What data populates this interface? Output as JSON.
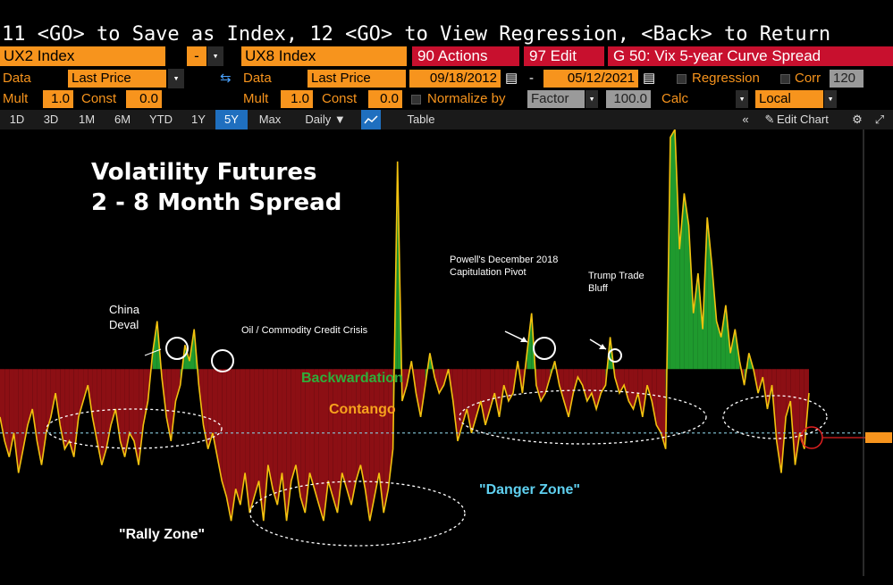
{
  "cmdline": "11 <GO> to Save as Index, 12 <GO> to View Regression, <Back> to Return",
  "security_row": {
    "security1": "UX2 Index",
    "security2": "UX8 Index",
    "actions": "90 Actions",
    "edit": "97 Edit",
    "title": "G 50: Vix 5-year Curve Spread"
  },
  "data_row": {
    "data_label1": "Data",
    "data_value1": "Last Price",
    "data_label2": "Data",
    "data_value2": "Last Price",
    "start_date": "09/18/2012",
    "end_date": "05/12/2021",
    "regression": "Regression",
    "corr": "Corr",
    "corr_value": "120"
  },
  "mult_row": {
    "mult_label": "Mult",
    "mult1": "1.0",
    "const_label": "Const",
    "const1": "0.0",
    "mult_label2": "Mult",
    "mult2": "1.0",
    "const_label2": "Const",
    "const2": "0.0",
    "normalize": "Normalize by",
    "factor": "Factor",
    "factor_value": "100.0",
    "calc": "Calc",
    "local": "Local"
  },
  "toolbar": {
    "periods": [
      "1D",
      "3D",
      "1M",
      "6M",
      "YTD",
      "1Y",
      "5Y",
      "Max"
    ],
    "active": "5Y",
    "frequency": "Daily ▼",
    "table": "Table",
    "edit_chart": "Edit Chart"
  },
  "chart_data": {
    "type": "area",
    "title": "Volatility Futures",
    "subtitle": "2 - 8 Month Spread",
    "annotations": {
      "china": "China\nDeval",
      "oil": "Oil / Commodity Credit Crisis",
      "powell": "Powell's December 2018\nCapitulation Pivot",
      "trump": "Trump Trade\nBluff",
      "backwardation": "Backwardation",
      "contango": "Contango",
      "danger": "\"Danger Zone\"",
      "rally": "\"Rally Zone\""
    },
    "baseline": 0.0,
    "danger_level": -0.8,
    "y_range": [
      -2.2,
      3.0
    ],
    "series": [
      {
        "values": [
          -0.6,
          -0.9,
          -1.1,
          -0.8,
          -1.3,
          -1.0,
          -0.7,
          -0.5,
          -0.9,
          -1.2,
          -0.8,
          -0.6,
          -0.3,
          -0.7,
          -1.0,
          -0.9,
          -1.1,
          -0.6,
          -0.4,
          -0.2,
          -0.6,
          -0.9,
          -1.2,
          -1.0,
          -0.7,
          -0.5,
          -0.9,
          -1.1,
          -0.8,
          -0.9,
          -1.2,
          -0.7,
          -0.4,
          0.2,
          0.6,
          -0.1,
          -0.6,
          -0.9,
          -0.4,
          -0.2,
          0.3,
          0.1,
          0.5,
          -0.2,
          -0.7,
          -1.0,
          -0.8,
          -1.1,
          -1.4,
          -1.6,
          -1.9,
          -1.5,
          -1.7,
          -1.3,
          -1.8,
          -1.6,
          -1.4,
          -1.9,
          -1.2,
          -1.5,
          -1.7,
          -1.3,
          -1.9,
          -1.4,
          -1.2,
          -1.6,
          -1.8,
          -1.3,
          -1.5,
          -1.7,
          -1.9,
          -1.4,
          -1.6,
          -1.8,
          -1.3,
          -1.5,
          -1.7,
          -1.4,
          -1.2,
          -1.5,
          -1.9,
          -1.6,
          -1.3,
          -1.8,
          -1.5,
          -1.0,
          2.6,
          -0.4,
          -0.2,
          0.1,
          -0.3,
          -0.6,
          -0.2,
          0.2,
          -0.1,
          -0.3,
          -0.2,
          0.0,
          -0.4,
          -0.9,
          -0.7,
          -0.5,
          -0.8,
          -0.6,
          -0.4,
          -0.7,
          -0.5,
          -0.3,
          -0.6,
          -0.2,
          -0.4,
          -0.3,
          0.1,
          -0.3,
          0.2,
          0.7,
          -0.2,
          -0.4,
          -0.3,
          -0.1,
          0.1,
          -0.2,
          -0.4,
          -0.6,
          -0.3,
          -0.1,
          -0.2,
          -0.4,
          -0.3,
          -0.5,
          -0.3,
          -0.2,
          0.4,
          -0.1,
          -0.3,
          -0.2,
          -0.4,
          -0.5,
          -0.3,
          -0.6,
          -0.2,
          -0.4,
          -0.7,
          -0.8,
          -1.0,
          2.9,
          3.0,
          1.5,
          2.2,
          1.8,
          0.7,
          1.2,
          0.5,
          1.9,
          1.3,
          0.6,
          0.4,
          0.8,
          0.2,
          0.5,
          0.1,
          -0.2,
          0.2,
          0.0,
          -0.3,
          -0.1,
          -0.5,
          -0.2,
          -0.9,
          -1.3,
          -0.6,
          -0.4,
          -1.2,
          -0.8,
          -1.0,
          -0.3
        ]
      }
    ]
  }
}
